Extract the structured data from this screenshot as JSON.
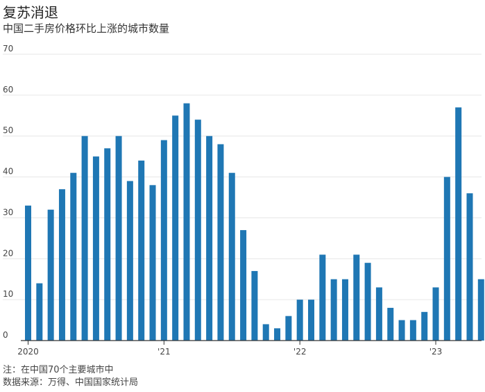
{
  "title": "复苏消退",
  "subtitle": "中国二手房价格环比上涨的城市数量",
  "notes": {
    "note": "注：在中国70个主要城市中",
    "source": "数据来源：万得、中国国家统计局"
  },
  "colors": {
    "bar": "#1f77b4",
    "grid": "#e6e6e6",
    "axis": "#333333"
  },
  "chart_data": {
    "type": "bar",
    "x_tick_labels": [
      "2020",
      "'21",
      "'22",
      "'23"
    ],
    "y_tick_labels": [
      "0",
      "10",
      "20",
      "30",
      "40",
      "50",
      "60",
      "70"
    ],
    "ylim": [
      0,
      70
    ],
    "grid": true,
    "values": [
      33,
      14,
      32,
      37,
      41,
      50,
      45,
      47,
      50,
      39,
      44,
      38,
      49,
      55,
      58,
      54,
      50,
      48,
      41,
      27,
      17,
      4,
      3,
      6,
      10,
      10,
      21,
      15,
      15,
      21,
      19,
      13,
      8,
      5,
      5,
      7,
      13,
      40,
      57,
      36,
      15
    ]
  }
}
